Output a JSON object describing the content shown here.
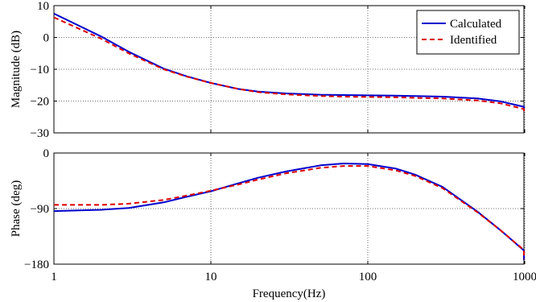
{
  "chart_data": [
    {
      "type": "line",
      "xscale": "log",
      "xlim": [
        1,
        1200
      ],
      "ylim": [
        -30,
        10
      ],
      "ylabel": "Magnitude (dB)",
      "xlabel": "",
      "yticks": [
        10,
        0,
        -10,
        -20,
        -30
      ],
      "ytick_labels": [
        "10",
        "0",
        "−10",
        "−20",
        "−30"
      ],
      "xticks": [
        1,
        10,
        100,
        1000
      ],
      "xtick_labels": [
        "",
        "",
        "",
        ""
      ],
      "grid": "dotted",
      "legend": {
        "position": "top-right",
        "entries": [
          "Calculated",
          "Identified"
        ]
      },
      "series": [
        {
          "name": "Calculated",
          "color": "#0000cc",
          "style": "solid",
          "x": [
            1,
            2,
            3,
            5,
            7,
            10,
            15,
            20,
            30,
            50,
            70,
            100,
            150,
            200,
            300,
            500,
            700,
            1000,
            1200
          ],
          "y": [
            7.5,
            0.3,
            -4.5,
            -9.8,
            -12.2,
            -14.3,
            -16.2,
            -17.0,
            -17.6,
            -18.0,
            -18.1,
            -18.2,
            -18.3,
            -18.4,
            -18.6,
            -19.2,
            -20.1,
            -21.8,
            -23.0
          ]
        },
        {
          "name": "Identified",
          "color": "#dd0000",
          "style": "dashed",
          "x": [
            1,
            2,
            3,
            5,
            7,
            10,
            15,
            20,
            30,
            50,
            70,
            100,
            150,
            200,
            300,
            500,
            700,
            1000,
            1200
          ],
          "y": [
            6.3,
            -0.4,
            -5.0,
            -10.0,
            -12.3,
            -14.3,
            -16.2,
            -17.2,
            -17.9,
            -18.4,
            -18.6,
            -18.7,
            -18.8,
            -19.0,
            -19.2,
            -19.8,
            -20.7,
            -22.5,
            -23.8
          ]
        }
      ]
    },
    {
      "type": "line",
      "xscale": "log",
      "xlim": [
        1,
        1200
      ],
      "ylim": [
        -180,
        0
      ],
      "ylabel": "Phase (deg)",
      "xlabel": "Frequency(Hz)",
      "yticks": [
        0,
        -90,
        -180
      ],
      "ytick_labels": [
        "0",
        "−90",
        "−180"
      ],
      "xticks": [
        1,
        10,
        100,
        1000
      ],
      "xtick_labels": [
        "1",
        "10",
        "100",
        "1000"
      ],
      "grid": "dotted",
      "series": [
        {
          "name": "Calculated",
          "color": "#0000cc",
          "style": "solid",
          "x": [
            1,
            2,
            3,
            5,
            7,
            10,
            15,
            20,
            30,
            50,
            70,
            100,
            150,
            200,
            300,
            500,
            700,
            1000,
            1200
          ],
          "y": [
            -94,
            -92,
            -89,
            -80,
            -71,
            -62,
            -49,
            -40,
            -30,
            -20,
            -17,
            -18,
            -25,
            -35,
            -55,
            -95,
            -125,
            -158,
            -173
          ]
        },
        {
          "name": "Identified",
          "color": "#dd0000",
          "style": "dashed",
          "x": [
            1,
            2,
            3,
            5,
            7,
            10,
            15,
            20,
            30,
            50,
            70,
            100,
            150,
            200,
            300,
            500,
            700,
            1000,
            1200
          ],
          "y": [
            -84,
            -84,
            -82,
            -76,
            -69,
            -61,
            -51,
            -43,
            -33,
            -24,
            -21,
            -21,
            -28,
            -37,
            -57,
            -96,
            -125,
            -157,
            -172
          ]
        }
      ]
    }
  ]
}
